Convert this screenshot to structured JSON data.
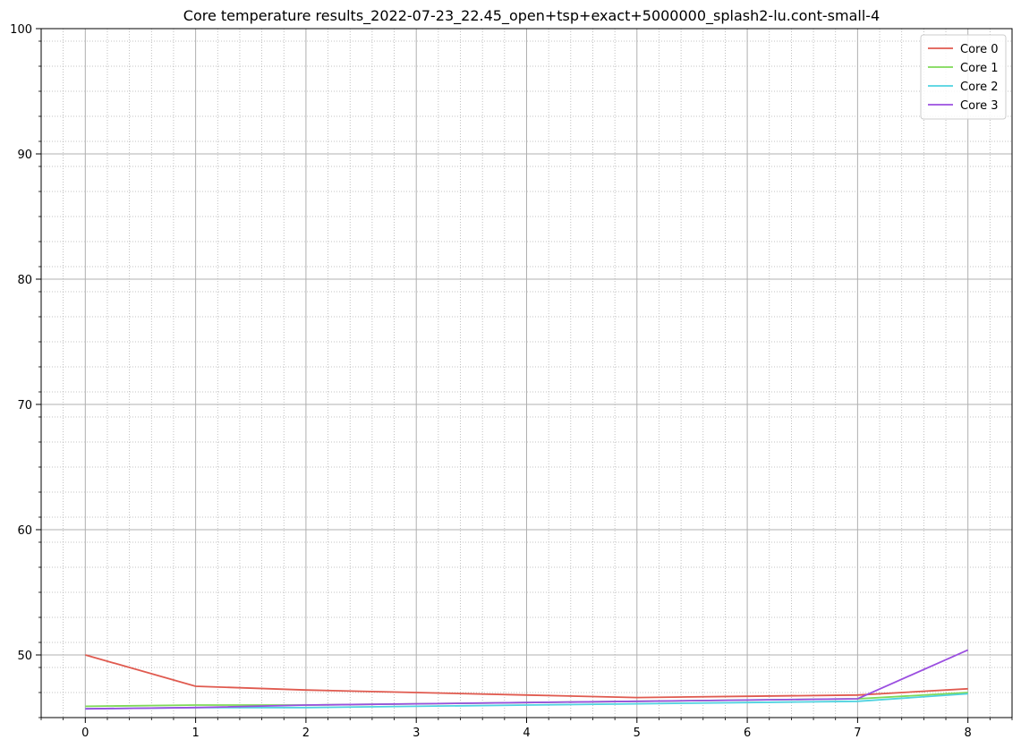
{
  "chart_data": {
    "type": "line",
    "title": "Core temperature results_2022-07-23_22.45_open+tsp+exact+5000000_splash2-lu.cont-small-4",
    "xlabel": "",
    "ylabel": "",
    "xlim": [
      -0.4,
      8.4
    ],
    "ylim": [
      45,
      100
    ],
    "x": [
      0,
      1,
      2,
      3,
      4,
      5,
      6,
      7,
      8
    ],
    "xticks": [
      0,
      1,
      2,
      3,
      4,
      5,
      6,
      7,
      8
    ],
    "xtick_labels": [
      "0",
      "1",
      "2",
      "3",
      "4",
      "5",
      "6",
      "7",
      "8"
    ],
    "yticks": [
      50,
      60,
      70,
      80,
      90,
      100
    ],
    "ytick_labels": [
      "50",
      "60",
      "70",
      "80",
      "90",
      "100"
    ],
    "grid": true,
    "minor_grid": true,
    "legend_position": "top-right",
    "series": [
      {
        "name": "Core 0",
        "color": "#e05a4f",
        "values": [
          50.0,
          47.5,
          47.2,
          47.0,
          46.8,
          46.6,
          46.7,
          46.8,
          47.3
        ]
      },
      {
        "name": "Core 1",
        "color": "#7ed957",
        "values": [
          45.9,
          46.0,
          46.0,
          46.1,
          46.2,
          46.3,
          46.4,
          46.5,
          47.0
        ]
      },
      {
        "name": "Core 2",
        "color": "#4fd2e0",
        "values": [
          45.7,
          45.8,
          45.8,
          45.9,
          46.0,
          46.1,
          46.2,
          46.3,
          46.9
        ]
      },
      {
        "name": "Core 3",
        "color": "#9b4fe0",
        "values": [
          45.7,
          45.8,
          46.0,
          46.1,
          46.2,
          46.3,
          46.4,
          46.5,
          50.4
        ]
      }
    ]
  }
}
